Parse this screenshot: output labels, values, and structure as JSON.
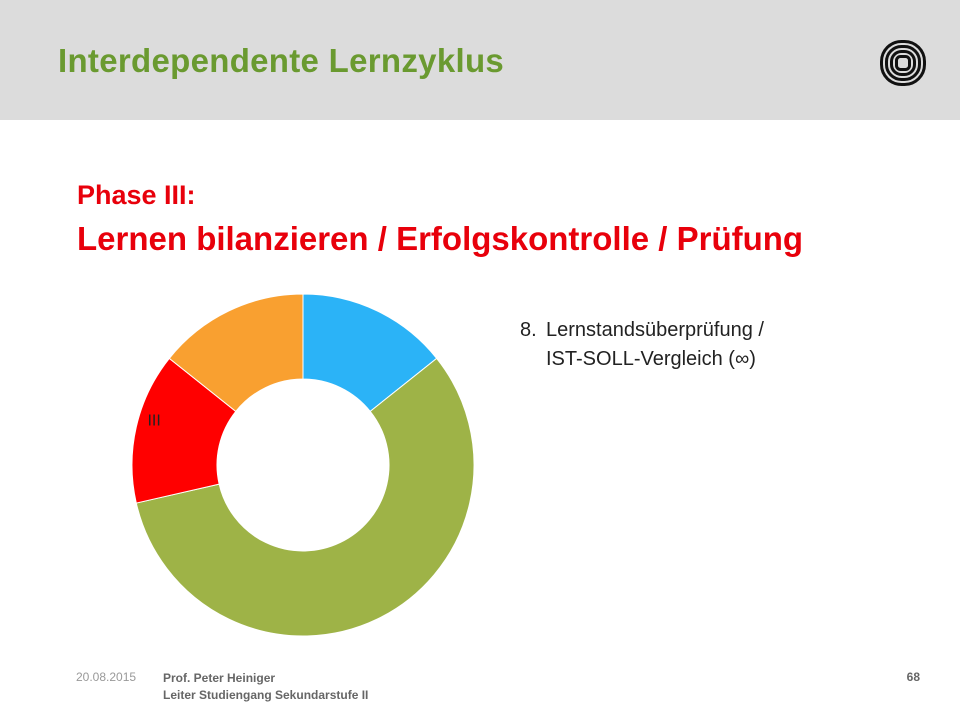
{
  "header": {
    "title": "Interdependente Lernzyklus",
    "background": "#dcdcdc",
    "title_color": "#6a9a30",
    "logo_icon": "concentric-square-logo"
  },
  "phase": {
    "title": "Phase III:",
    "subtitle": "Lernen bilanzieren / Erfolgskontrolle / Prüfung",
    "color": "#e8000b"
  },
  "items": [
    {
      "number": "8.",
      "line1": "Lernstandsüberprüfung /",
      "line2": "IST-SOLL-Vergleich (∞)"
    }
  ],
  "chart_data": {
    "type": "pie",
    "style": "donut",
    "slices": [
      {
        "value": 1,
        "color": "#2bb3f7",
        "label": ""
      },
      {
        "value": 4,
        "color": "#9eb347",
        "label": ""
      },
      {
        "value": 1,
        "color": "#ff0000",
        "label": "III"
      },
      {
        "value": 1,
        "color": "#f9a030",
        "label": ""
      }
    ],
    "start": "12 o'clock",
    "direction": "clockwise"
  },
  "footer": {
    "date": "20.08.2015",
    "author": "Prof. Peter Heiniger",
    "role": "Leiter Studiengang Sekundarstufe II",
    "page": "68"
  }
}
